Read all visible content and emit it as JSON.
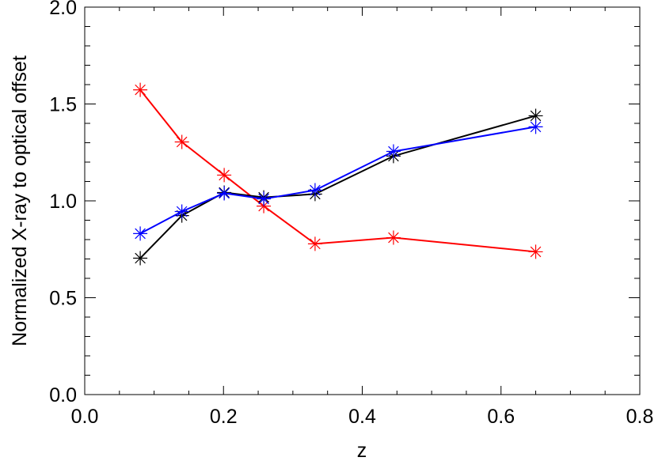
{
  "chart_data": {
    "type": "line",
    "x_label": "z",
    "y_label": "Normalized X-ray to optical offset",
    "x": [
      0.08,
      0.14,
      0.201,
      0.258,
      0.332,
      0.445,
      0.65
    ],
    "series": [
      {
        "color": "#ff0000",
        "values": [
          1.573,
          1.304,
          1.133,
          0.973,
          0.778,
          0.81,
          0.737
        ]
      },
      {
        "color": "#000000",
        "values": [
          0.704,
          0.924,
          1.043,
          1.018,
          1.035,
          1.231,
          1.439
        ]
      },
      {
        "color": "#0000ff",
        "values": [
          0.831,
          0.945,
          1.039,
          1.01,
          1.055,
          1.255,
          1.382
        ]
      }
    ],
    "xlim": [
      0.0,
      0.8
    ],
    "ylim": [
      0.0,
      2.0
    ],
    "xticks": [
      {
        "value": 0.0,
        "label": "0.0"
      },
      {
        "value": 0.2,
        "label": "0.2"
      },
      {
        "value": 0.4,
        "label": "0.4"
      },
      {
        "value": 0.6,
        "label": "0.6"
      },
      {
        "value": 0.8,
        "label": "0.8"
      }
    ],
    "yticks": [
      {
        "value": 0.0,
        "label": "0.0"
      },
      {
        "value": 0.5,
        "label": "0.5"
      },
      {
        "value": 1.0,
        "label": "1.0"
      },
      {
        "value": 1.5,
        "label": "1.5"
      },
      {
        "value": 2.0,
        "label": "2.0"
      }
    ]
  }
}
